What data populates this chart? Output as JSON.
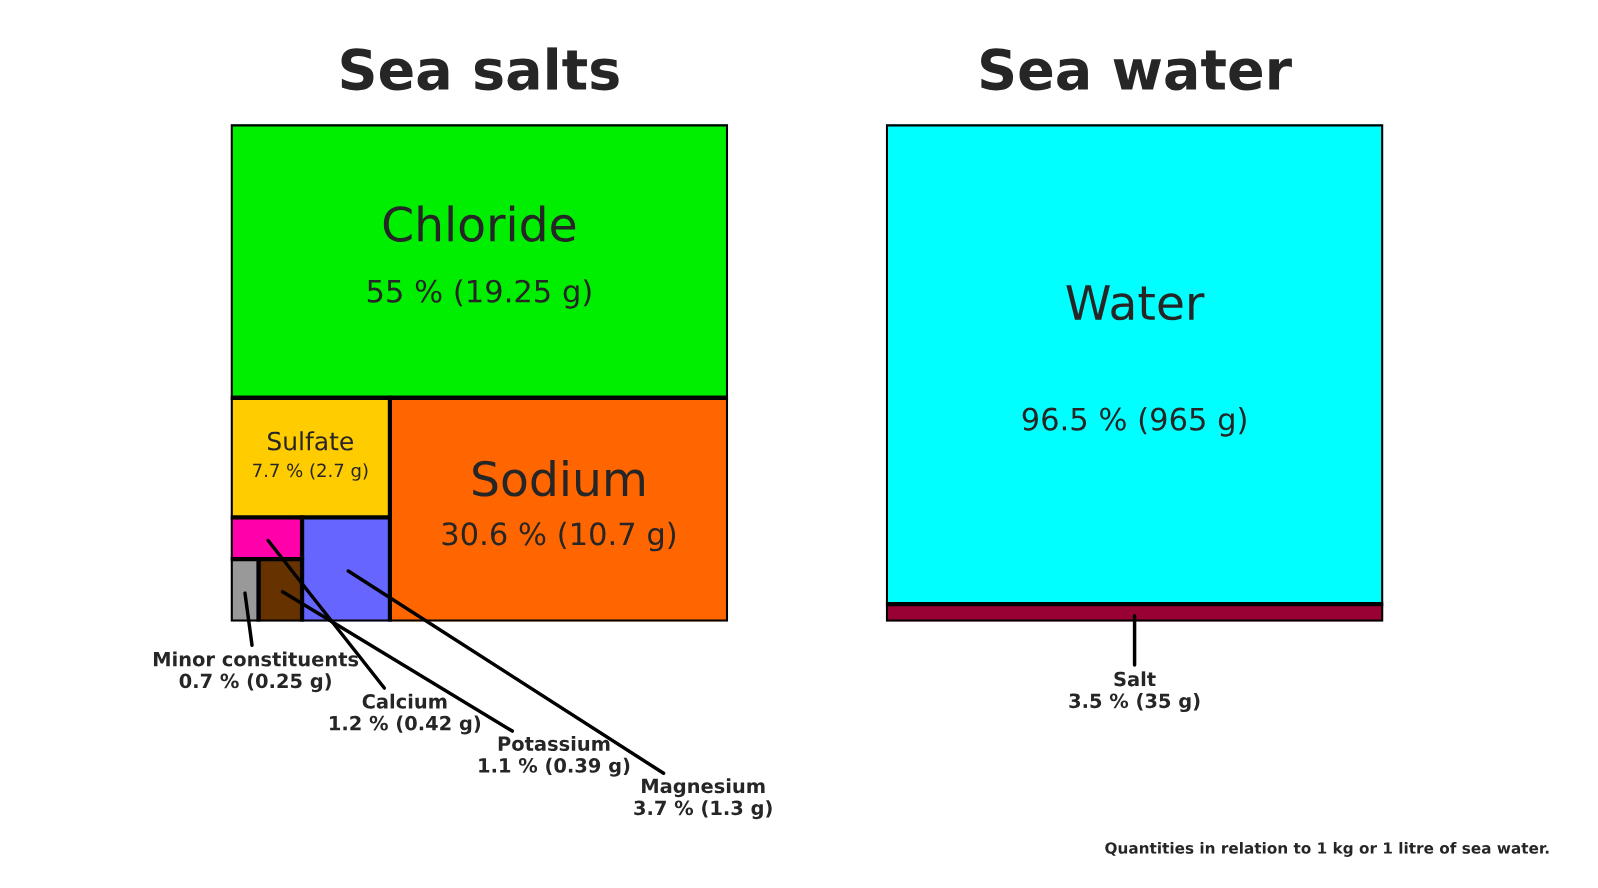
{
  "chart_data": [
    {
      "type": "other",
      "title": "Sea salts",
      "categories": [
        "Chloride",
        "Sodium",
        "Sulfate",
        "Magnesium",
        "Calcium",
        "Potassium",
        "Minor constituents"
      ],
      "values": [
        55,
        30.6,
        7.7,
        3.7,
        1.2,
        1.1,
        0.7
      ],
      "value_labels": [
        "55 % (19.25 g)",
        "30.6 % (10.7 g)",
        "7.7 % (2.7 g)",
        "3.7 % (1.3 g)",
        "1.2 % (0.42 g)",
        "1.1 % (0.39 g)",
        "0.7 % (0.25 g)"
      ],
      "colors": [
        "#00ee00",
        "#ff6600",
        "#ffcc00",
        "#6666ff",
        "#ff00aa",
        "#663300",
        "#999999"
      ]
    },
    {
      "type": "other",
      "title": "Sea water",
      "categories": [
        "Water",
        "Salt"
      ],
      "values": [
        96.5,
        3.5
      ],
      "value_labels": [
        "96.5 % (965 g)",
        "3.5 % (35 g)"
      ],
      "colors": [
        "#00ffff",
        "#990033"
      ],
      "annotations": [
        "Quantities in relation to 1 kg or 1 litre of sea water."
      ]
    }
  ]
}
